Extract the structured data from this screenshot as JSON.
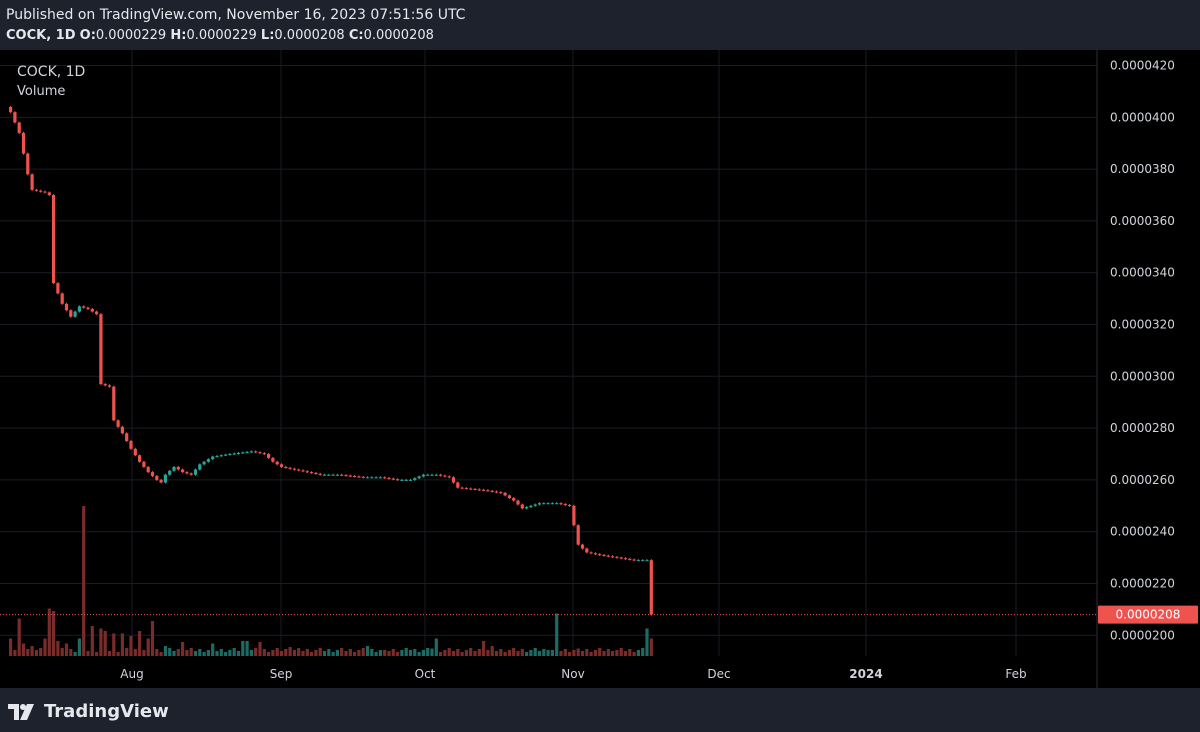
{
  "header": {
    "published": "Published on TradingView.com, November 16, 2023 07:51:56 UTC",
    "symbol_tf": "COCK, 1D",
    "o_label": "O:",
    "o_value": "0.0000229",
    "h_label": "H:",
    "h_value": "0.0000229",
    "l_label": "L:",
    "l_value": "0.0000208",
    "c_label": "C:",
    "c_value": "0.0000208"
  },
  "legend": {
    "symbol": "COCK, 1D",
    "volume": "Volume"
  },
  "footer": {
    "brand": "TradingView"
  },
  "colors": {
    "up": "#26a69a",
    "down": "#ef5350",
    "bg": "#000000",
    "frame": "#1e222d",
    "grid": "#1a1d26",
    "text": "#d1d4dc"
  },
  "chart_data": {
    "type": "candlestick",
    "title": "COCK, 1D",
    "ylim": [
      1.92e-05,
      4.26e-05
    ],
    "y_ticks": [
      "0.0000420",
      "0.0000400",
      "0.0000380",
      "0.0000360",
      "0.0000340",
      "0.0000320",
      "0.0000300",
      "0.0000280",
      "0.0000260",
      "0.0000240",
      "0.0000220",
      "0.0000200"
    ],
    "x_ticks": [
      "Aug",
      "Sep",
      "Oct",
      "Nov",
      "Dec",
      "2024",
      "Feb"
    ],
    "last_price_label": "0.0000208",
    "last_price": 2.08e-05,
    "price_path": [
      [
        0,
        4.02e-05
      ],
      [
        2,
        3.94e-05
      ],
      [
        4,
        3.78e-05
      ],
      [
        5,
        3.72e-05
      ],
      [
        8,
        3.71e-05
      ],
      [
        9,
        3.7e-05
      ],
      [
        10,
        3.36e-05
      ],
      [
        12,
        3.28e-05
      ],
      [
        14,
        3.23e-05
      ],
      [
        16,
        3.27e-05
      ],
      [
        18,
        3.26e-05
      ],
      [
        20,
        3.24e-05
      ],
      [
        21,
        2.97e-05
      ],
      [
        23,
        2.96e-05
      ],
      [
        24,
        2.83e-05
      ],
      [
        26,
        2.78e-05
      ],
      [
        28,
        2.72e-05
      ],
      [
        30,
        2.67e-05
      ],
      [
        32,
        2.63e-05
      ],
      [
        34,
        2.6e-05
      ],
      [
        35,
        2.59e-05
      ],
      [
        36,
        2.62e-05
      ],
      [
        38,
        2.65e-05
      ],
      [
        40,
        2.63e-05
      ],
      [
        42,
        2.62e-05
      ],
      [
        44,
        2.66e-05
      ],
      [
        47,
        2.69e-05
      ],
      [
        51,
        2.7e-05
      ],
      [
        56,
        2.71e-05
      ],
      [
        59,
        2.7e-05
      ],
      [
        61,
        2.67e-05
      ],
      [
        63,
        2.65e-05
      ],
      [
        66,
        2.64e-05
      ],
      [
        69,
        2.63e-05
      ],
      [
        72,
        2.62e-05
      ],
      [
        76,
        2.62e-05
      ],
      [
        82,
        2.61e-05
      ],
      [
        86,
        2.61e-05
      ],
      [
        90,
        2.6e-05
      ],
      [
        93,
        2.6e-05
      ],
      [
        96,
        2.62e-05
      ],
      [
        99,
        2.62e-05
      ],
      [
        102,
        2.61e-05
      ],
      [
        104,
        2.57e-05
      ],
      [
        110,
        2.56e-05
      ],
      [
        114,
        2.55e-05
      ],
      [
        117,
        2.52e-05
      ],
      [
        119,
        2.49e-05
      ],
      [
        121,
        2.5e-05
      ],
      [
        123,
        2.51e-05
      ],
      [
        127,
        2.51e-05
      ],
      [
        130,
        2.5e-05
      ],
      [
        132,
        2.35e-05
      ],
      [
        134,
        2.32e-05
      ],
      [
        137,
        2.31e-05
      ],
      [
        141,
        2.3e-05
      ],
      [
        145,
        2.29e-05
      ],
      [
        148,
        2.29e-05
      ],
      [
        149,
        2.08e-05
      ]
    ],
    "volume_spikes": [
      [
        0,
        0.35
      ],
      [
        2,
        0.75
      ],
      [
        3,
        0.25
      ],
      [
        5,
        0.2
      ],
      [
        8,
        0.35
      ],
      [
        9,
        0.95
      ],
      [
        10,
        0.9
      ],
      [
        11,
        0.3
      ],
      [
        13,
        0.25
      ],
      [
        16,
        0.35
      ],
      [
        17,
        3.0
      ],
      [
        19,
        0.6
      ],
      [
        21,
        0.55
      ],
      [
        22,
        0.5
      ],
      [
        24,
        0.45
      ],
      [
        26,
        0.45
      ],
      [
        28,
        0.4
      ],
      [
        30,
        0.5
      ],
      [
        32,
        0.35
      ],
      [
        33,
        0.7
      ],
      [
        36,
        0.2
      ],
      [
        40,
        0.28
      ],
      [
        47,
        0.25
      ],
      [
        54,
        0.3
      ],
      [
        55,
        0.3
      ],
      [
        58,
        0.28
      ],
      [
        65,
        0.18
      ],
      [
        76,
        0.12
      ],
      [
        83,
        0.2
      ],
      [
        87,
        0.12
      ],
      [
        93,
        0.12
      ],
      [
        98,
        0.15
      ],
      [
        99,
        0.35
      ],
      [
        110,
        0.3
      ],
      [
        112,
        0.2
      ],
      [
        125,
        0.12
      ],
      [
        127,
        0.85
      ],
      [
        132,
        0.15
      ],
      [
        140,
        0.1
      ],
      [
        148,
        0.55
      ],
      [
        149,
        0.35
      ]
    ]
  }
}
